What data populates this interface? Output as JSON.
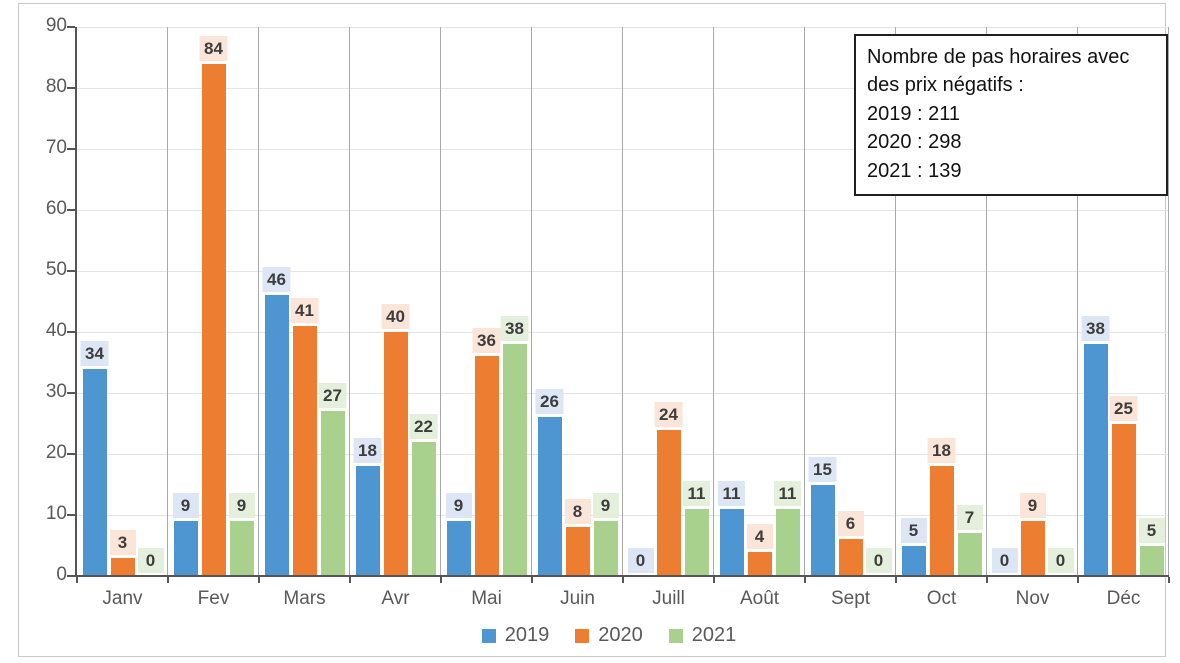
{
  "chart_data": {
    "type": "bar",
    "title": "",
    "xlabel": "",
    "ylabel": "",
    "categories": [
      "Janv",
      "Fev",
      "Mars",
      "Avr",
      "Mai",
      "Juin",
      "Juill",
      "Août",
      "Sept",
      "Oct",
      "Nov",
      "Déc"
    ],
    "series": [
      {
        "name": "2019",
        "color": "#4d96d2",
        "label_bg": "#dce6f4",
        "values": [
          34,
          9,
          46,
          18,
          9,
          26,
          0,
          11,
          15,
          5,
          0,
          38
        ],
        "total": 211
      },
      {
        "name": "2020",
        "color": "#ed7d31",
        "label_bg": "#fbe5d8",
        "values": [
          3,
          84,
          41,
          40,
          36,
          8,
          24,
          4,
          6,
          18,
          9,
          25
        ],
        "total": 298
      },
      {
        "name": "2021",
        "color": "#a9d18e",
        "label_bg": "#e5f0dc",
        "values": [
          0,
          9,
          27,
          22,
          38,
          9,
          11,
          11,
          0,
          7,
          0,
          5
        ],
        "total": 139
      }
    ],
    "ylim": [
      0,
      90
    ],
    "ytick_step": 10,
    "yticks": [
      "0",
      "10",
      "20",
      "30",
      "40",
      "50",
      "60",
      "70",
      "80",
      "90"
    ],
    "grid": {
      "horizontal": true,
      "vertical_category_separators": true
    },
    "legend_position": "bottom",
    "data_labels": "above bars with light series-colored background"
  },
  "annotation_box": {
    "lines": [
      "Nombre de pas horaires avec",
      "des prix négatifs :",
      "2019 : 211",
      "2020 : 298",
      "2021 : 139"
    ]
  },
  "colors": {
    "axis": "#555555",
    "grid_horizontal": "#e4e4e4",
    "grid_vertical": "#a8a8a8",
    "tick_label": "#595959",
    "data_label_text": "#3d3d3d",
    "frame_border": "#c9c9c9",
    "annotation_border": "#1f1f1f"
  }
}
